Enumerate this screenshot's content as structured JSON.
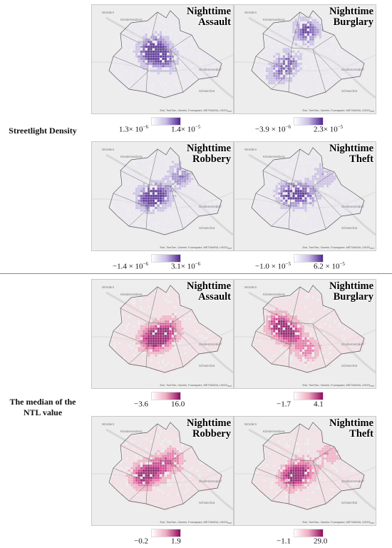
{
  "rows": [
    {
      "label": "Streetlight Density",
      "palette": "purple",
      "panels": [
        {
          "title_line1": "Nighttime",
          "title_line2": "Assault",
          "legend_min": "1.3× 10",
          "legend_min_exp": "−6",
          "legend_max": "1.4× 10",
          "legend_max_exp": "−5"
        },
        {
          "title_line1": "Nighttime",
          "title_line2": "Burglary",
          "legend_min": "−3.9 × 10",
          "legend_min_exp": "−6",
          "legend_max": "2.3× 10",
          "legend_max_exp": "−5"
        },
        {
          "title_line1": "Nighttime",
          "title_line2": "Robbery",
          "legend_min": "−1.4 × 10",
          "legend_min_exp": "−6",
          "legend_max": "3.1× 10",
          "legend_max_exp": "−6"
        },
        {
          "title_line1": "Nighttime",
          "title_line2": "Theft",
          "legend_min": "−1.0 × 10",
          "legend_min_exp": "−5",
          "legend_max": "6.2 × 10",
          "legend_max_exp": "−5"
        }
      ]
    },
    {
      "label": "The median of the NTL value",
      "palette": "magenta",
      "panels": [
        {
          "title_line1": "Nighttime",
          "title_line2": "Assault",
          "legend_min": "−3.6",
          "legend_min_exp": "",
          "legend_max": "16.0",
          "legend_max_exp": ""
        },
        {
          "title_line1": "Nighttime",
          "title_line2": "Burglary",
          "legend_min": "−1.7",
          "legend_min_exp": "",
          "legend_max": "4.1",
          "legend_max_exp": ""
        },
        {
          "title_line1": "Nighttime",
          "title_line2": "Robbery",
          "legend_min": "−0.2",
          "legend_min_exp": "",
          "legend_max": "1.9",
          "legend_max_exp": ""
        },
        {
          "title_line1": "Nighttime",
          "title_line2": "Theft",
          "legend_min": "−1.1",
          "legend_min_exp": "",
          "legend_max": "29.0",
          "legend_max_exp": ""
        }
      ]
    }
  ],
  "map": {
    "attribution": "Esri, TomTom, Garmin, Foursquare, METI/NASA, USGS",
    "esri": "esri",
    "places": [
      "Wördern",
      "Klosterneuburg",
      "Großenzersdorf",
      "Schwechat"
    ]
  },
  "colors": {
    "purple": [
      "#e9e3f3",
      "#c8bce4",
      "#9d8bcc",
      "#7350b0",
      "#4f2590"
    ],
    "magenta": [
      "#f6d6de",
      "#f0a9c0",
      "#e66a9f",
      "#cc2b82",
      "#8e0a5f"
    ]
  }
}
